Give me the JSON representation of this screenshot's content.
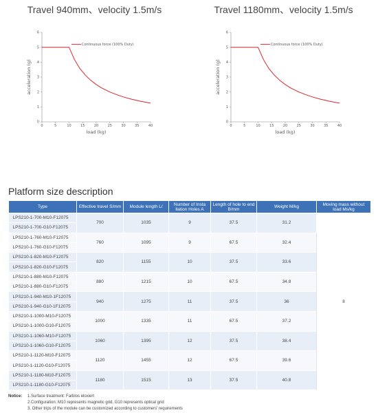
{
  "chart_data": [
    {
      "type": "line",
      "title": "Travel 940mm、velocity 1.5m/s",
      "xlabel": "load (kg)",
      "ylabel": "acceleration (g)",
      "xlim": [
        0,
        40
      ],
      "ylim": [
        0,
        6
      ],
      "xticks": [
        "0",
        "5",
        "10",
        "15",
        "20",
        "25",
        "30",
        "35",
        "40"
      ],
      "yticks": [
        "0",
        "1",
        "2",
        "3",
        "4",
        "5",
        "6"
      ],
      "series": [
        {
          "name": "Continuous force (100% Duty)",
          "color": "#d9252b",
          "x": [
            0,
            10,
            12,
            14,
            16,
            18,
            20,
            22,
            25,
            28,
            30,
            33,
            36,
            40
          ],
          "y": [
            5,
            5,
            4.17,
            3.57,
            3.13,
            2.78,
            2.5,
            2.27,
            2.0,
            1.79,
            1.67,
            1.52,
            1.39,
            1.25
          ]
        }
      ],
      "legend_position": "top-center",
      "grid": false
    },
    {
      "type": "line",
      "title": "Travel 1180mm、velocity 1.5m/s",
      "xlabel": "load (kg)",
      "ylabel": "acceleration (g)",
      "xlim": [
        0,
        40
      ],
      "ylim": [
        0,
        6
      ],
      "xticks": [
        "0",
        "5",
        "10",
        "15",
        "20",
        "25",
        "30",
        "35",
        "40"
      ],
      "yticks": [
        "0",
        "1",
        "2",
        "3",
        "4",
        "5",
        "6"
      ],
      "series": [
        {
          "name": "Continuous force (100% Duty)",
          "color": "#d9252b",
          "x": [
            0,
            10,
            12,
            14,
            16,
            18,
            20,
            22,
            25,
            28,
            30,
            33,
            36,
            40
          ],
          "y": [
            5,
            5,
            4.17,
            3.57,
            3.13,
            2.78,
            2.5,
            2.27,
            2.0,
            1.79,
            1.67,
            1.52,
            1.39,
            1.25
          ]
        }
      ],
      "legend_position": "top-center",
      "grid": false
    }
  ],
  "section_title": "Platform size description",
  "table": {
    "headers": [
      "Type",
      "Effective travel S/mm",
      "Module length L/",
      "Number of Insta llation Holes A",
      "Length of hole to end B/mm",
      "Weight M/kg",
      "Moving mass without load Ms/kg"
    ],
    "moving_mass": "8",
    "groups": [
      {
        "types": [
          "LPS210-1-700-M10-F12075",
          "LPS210-1-700-G10-F12075"
        ],
        "travel": "700",
        "length": "1035",
        "holes": "9",
        "hole_end": "37.5",
        "weight": "31.2"
      },
      {
        "types": [
          "LPS210-1-760-M10-F12075",
          "LPS210-1-760-G10-F12075"
        ],
        "travel": "760",
        "length": "1095",
        "holes": "9",
        "hole_end": "67.5",
        "weight": "32.4"
      },
      {
        "types": [
          "LPS210-1-820-M10-F12075",
          "LPS210-1-820-G10-F12075"
        ],
        "travel": "820",
        "length": "1155",
        "holes": "10",
        "hole_end": "37.5",
        "weight": "33.6"
      },
      {
        "types": [
          "LPS210-1-880-M10-F12075",
          "LPS210-1-880-G10-F12075"
        ],
        "travel": "880",
        "length": "1215",
        "holes": "10",
        "hole_end": "67.5",
        "weight": "34.8"
      },
      {
        "types": [
          "LPS210-1-940-M10-1F12075",
          "LPS210-1-940-G10-1F12075"
        ],
        "travel": "940",
        "length": "1275",
        "holes": "11",
        "hole_end": "37.5",
        "weight": "36"
      },
      {
        "types": [
          "LPS210-1-1000-M10-F12075",
          "LPS210-1-1000-G10-F12075"
        ],
        "travel": "1000",
        "length": "1335",
        "holes": "11",
        "hole_end": "67.5",
        "weight": "37.2"
      },
      {
        "types": [
          "LPS210-1-1060-M10-F12075",
          "LPS210-1-1060-G10-F12075"
        ],
        "travel": "1060",
        "length": "1395",
        "holes": "12",
        "hole_end": "37.5",
        "weight": "38.4"
      },
      {
        "types": [
          "LPS210-1-1120-M10-F12075",
          "LPS210-1-1120-G10-F12075"
        ],
        "travel": "1120",
        "length": "1455",
        "holes": "12",
        "hole_end": "67.5",
        "weight": "39.6"
      },
      {
        "types": [
          "LPS210-1-1180-M10-F12075",
          "LPS210-1-1180-G10-F12075"
        ],
        "travel": "1180",
        "length": "1515",
        "holes": "13",
        "hole_end": "37.5",
        "weight": "40.8"
      }
    ]
  },
  "notice": {
    "label": "Notice:",
    "lines": [
      "1.Surface treatment: Farblos eloxiert",
      "2.Configuration: M10 represents magnetic grid, G10 represents optical grid",
      "3. Other trips of the module can be customized according to customers' requirements"
    ]
  },
  "colors": {
    "header": "#3d72b8",
    "row_shade": "#e8eef7",
    "curve": "#d9252b"
  }
}
